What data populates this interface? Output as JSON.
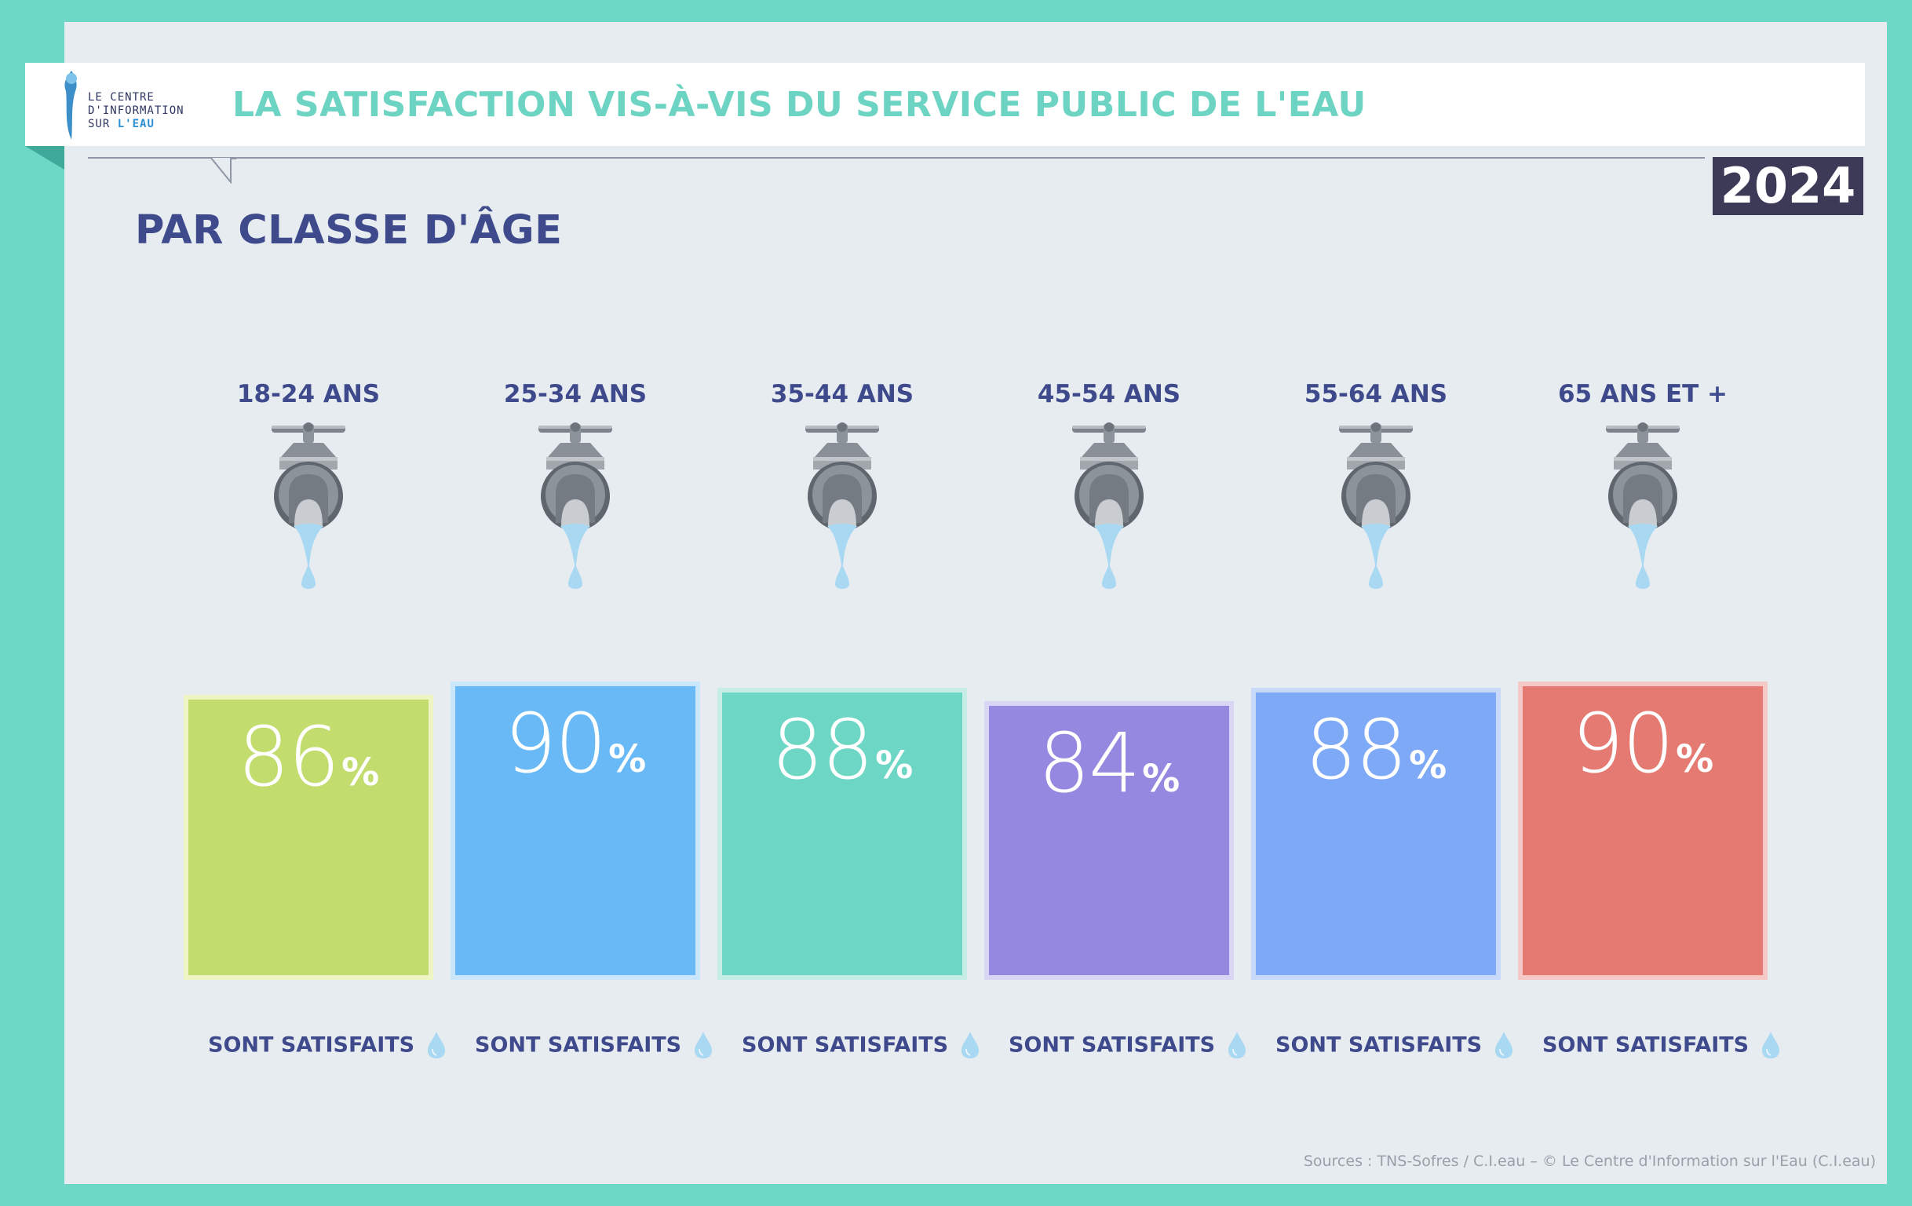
{
  "header": {
    "logo_line1": "LE CENTRE",
    "logo_line2": "D'INFORMATION",
    "logo_line3a": "SUR",
    "logo_line3b": "L'EAU",
    "title": "LA SATISFACTION VIS-À-VIS DU SERVICE PUBLIC DE L'EAU",
    "year": "2024"
  },
  "subtitle": "PAR CLASSE D'ÂGE",
  "chart_data": {
    "type": "bar",
    "categories": [
      "18-24 ANS",
      "25-34 ANS",
      "35-44 ANS",
      "45-54 ANS",
      "55-64 ANS",
      "65 ANS ET +"
    ],
    "values": [
      86,
      90,
      88,
      84,
      88,
      90
    ],
    "value_suffix": "%",
    "category_caption": "SONT SATISFAITS",
    "colors": [
      "#c3dc6e",
      "#69b9f7",
      "#6dd6c4",
      "#9488e0",
      "#7ea9f6",
      "#e47a71"
    ],
    "frame_colors": [
      "#eef5c2",
      "#c9e6fb",
      "#c7eee6",
      "#d8d6f4",
      "#c8d9fa",
      "#f5c9c6"
    ]
  },
  "footer": {
    "source": "Sources : TNS-Sofres / C.I.eau – © Le Centre d'Information sur l'Eau (C.I.eau)"
  },
  "colors": {
    "background": "#6dd8c6",
    "panel": "#e7ecf0",
    "title": "#6dd3c2",
    "heading": "#3f4a8c",
    "year_badge": "#3c3a57",
    "water_drop": "#a8d8f2"
  },
  "icons": {
    "faucet": "faucet-icon",
    "drop": "water-drop-icon",
    "logo": "logo-drop-icon"
  }
}
